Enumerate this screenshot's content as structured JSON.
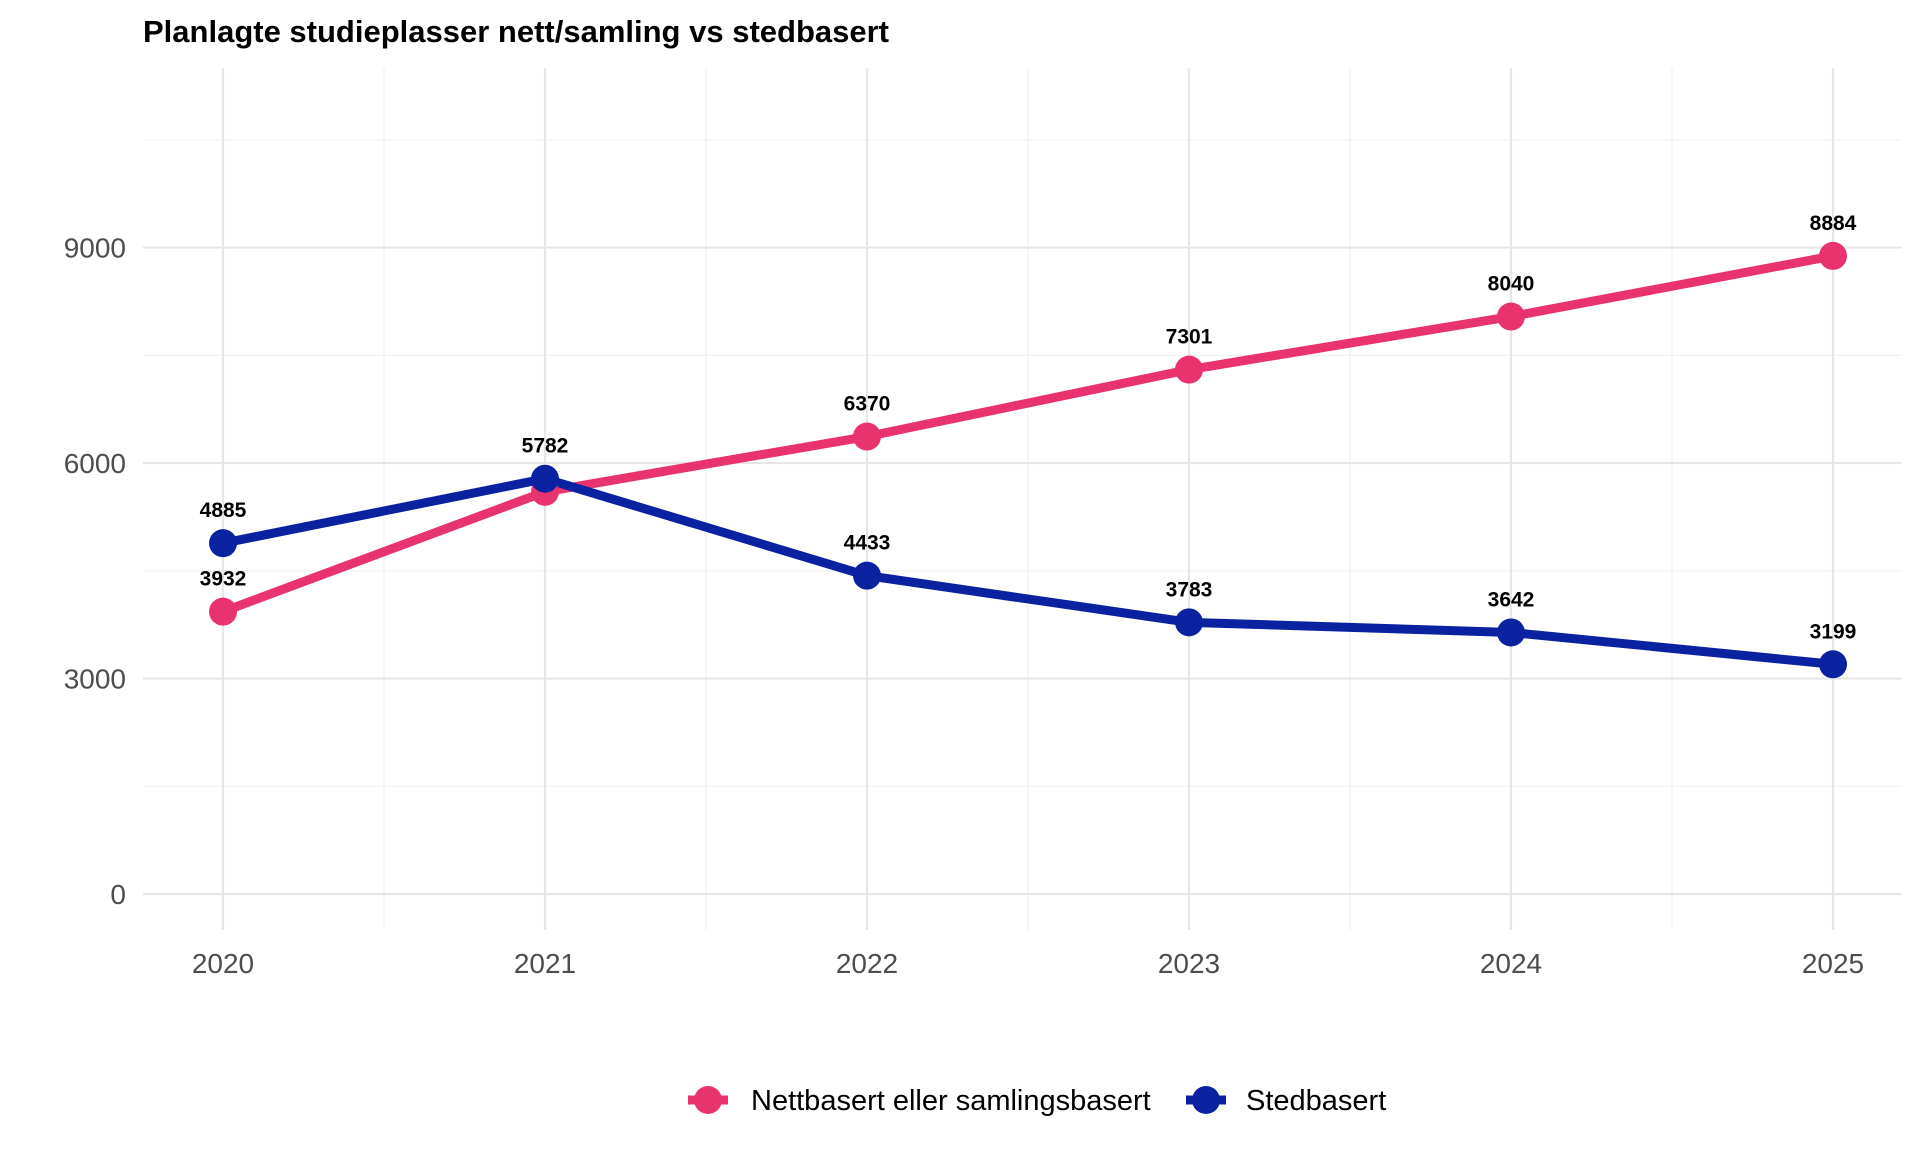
{
  "chart_data": {
    "type": "line",
    "title": "Planlagte studieplasser nett/samling vs stedbasert",
    "xlabel": "",
    "ylabel": "",
    "x": [
      "2020",
      "2021",
      "2022",
      "2023",
      "2024",
      "2025"
    ],
    "ylim": [
      -500,
      11500
    ],
    "y_ticks": [
      "0",
      "3000",
      "6000",
      "9000"
    ],
    "grid": true,
    "legend_position": "bottom",
    "series": [
      {
        "name": "Nettbasert eller samlingsbasert",
        "color": "#E8336E",
        "values": [
          3932,
          5600,
          6370,
          7301,
          8040,
          8884
        ],
        "labels": [
          "3932",
          "",
          "6370",
          "7301",
          "8040",
          "8884"
        ]
      },
      {
        "name": "Stedbasert",
        "color": "#0B22A0",
        "values": [
          4885,
          5782,
          4433,
          3783,
          3642,
          3199
        ],
        "labels": [
          "4885",
          "5782",
          "4433",
          "3783",
          "3642",
          "3199"
        ]
      }
    ]
  }
}
